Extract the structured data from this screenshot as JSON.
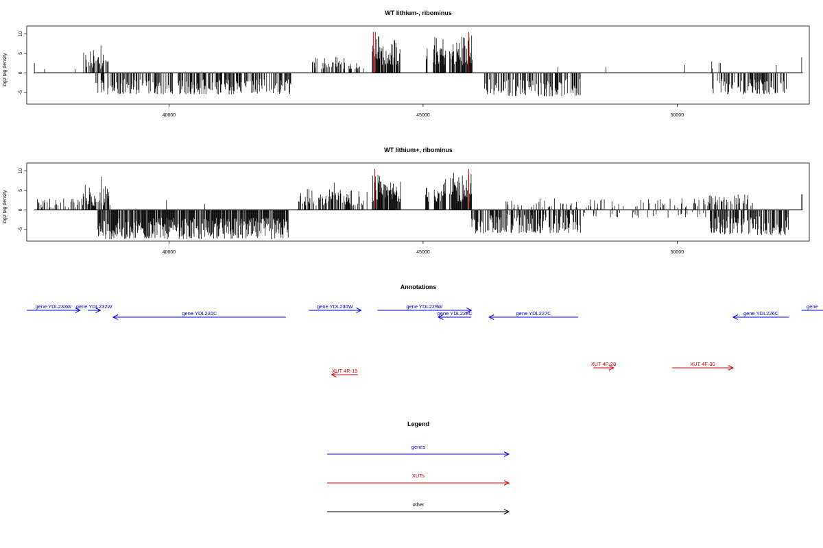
{
  "colors": {
    "gene": "#0000cc",
    "xut": "#cc0000",
    "other": "#000000",
    "highlight": "#cc0000",
    "bar": "#000000"
  },
  "chart_data": [
    {
      "type": "bar",
      "title": "WT lithium-, ribominus",
      "xlabel": "",
      "ylabel": "log2 tag density",
      "xlim": [
        37200,
        52600
      ],
      "ylim": [
        -8,
        12
      ],
      "xticks": [
        40000,
        45000,
        50000
      ],
      "xtick_labels": [
        "40000",
        "45000",
        "50000"
      ],
      "yticks": [
        -5,
        0,
        5,
        10
      ],
      "ytick_labels": [
        "-5",
        "0",
        "5",
        "10"
      ],
      "grid": false,
      "highlight_positions": [
        44020,
        44060,
        45900
      ],
      "segments": [
        {
          "start": 37350,
          "end": 37360,
          "min": 2.5,
          "max": 2.5,
          "density": 1
        },
        {
          "start": 37550,
          "end": 37560,
          "min": 1,
          "max": 1,
          "density": 1
        },
        {
          "start": 38150,
          "end": 38160,
          "min": 1,
          "max": 1,
          "density": 1
        },
        {
          "start": 38320,
          "end": 38830,
          "min": 1,
          "max": 6,
          "density": 0.6
        },
        {
          "start": 38660,
          "end": 38670,
          "min": 7,
          "max": 7,
          "density": 1
        },
        {
          "start": 38550,
          "end": 42400,
          "min": -5.5,
          "max": -1.5,
          "density": 0.55
        },
        {
          "start": 42820,
          "end": 43000,
          "min": 1,
          "max": 4,
          "density": 0.5
        },
        {
          "start": 43000,
          "end": 43500,
          "min": 1,
          "max": 4.5,
          "density": 0.35
        },
        {
          "start": 43520,
          "end": 43830,
          "min": 1,
          "max": 3,
          "density": 0.35
        },
        {
          "start": 44000,
          "end": 44150,
          "min": 3,
          "max": 10,
          "density": 0.8
        },
        {
          "start": 44150,
          "end": 44560,
          "min": 2,
          "max": 8.5,
          "density": 0.85
        },
        {
          "start": 45050,
          "end": 45100,
          "min": 2,
          "max": 6.5,
          "density": 0.8
        },
        {
          "start": 45200,
          "end": 45450,
          "min": 2,
          "max": 9.5,
          "density": 0.85
        },
        {
          "start": 45520,
          "end": 45970,
          "min": 2,
          "max": 10,
          "density": 0.85
        },
        {
          "start": 46200,
          "end": 48100,
          "min": -6,
          "max": -1.5,
          "density": 0.5
        },
        {
          "start": 47650,
          "end": 47660,
          "min": 1.5,
          "max": 1.5,
          "density": 1
        },
        {
          "start": 48600,
          "end": 48610,
          "min": 1.5,
          "max": 1.5,
          "density": 1
        },
        {
          "start": 50150,
          "end": 50160,
          "min": 2,
          "max": 2,
          "density": 1
        },
        {
          "start": 50660,
          "end": 50920,
          "min": 1,
          "max": 3.5,
          "density": 0.15
        },
        {
          "start": 50660,
          "end": 52200,
          "min": -5.5,
          "max": -1.5,
          "density": 0.45
        },
        {
          "start": 51950,
          "end": 51960,
          "min": 2,
          "max": 2,
          "density": 1
        },
        {
          "start": 52450,
          "end": 52460,
          "min": 4,
          "max": 4,
          "density": 1
        }
      ]
    },
    {
      "type": "bar",
      "title": "WT lithium+, ribominus",
      "xlabel": "",
      "ylabel": "log2 tag density",
      "xlim": [
        37200,
        52600
      ],
      "ylim": [
        -8,
        12
      ],
      "xticks": [
        40000,
        45000,
        50000
      ],
      "xtick_labels": [
        "40000",
        "45000",
        "50000"
      ],
      "yticks": [
        -5,
        0,
        5,
        10
      ],
      "ytick_labels": [
        "-5",
        "0",
        "5",
        "10"
      ],
      "grid": false,
      "highlight_positions": [
        44050,
        45900
      ],
      "segments": [
        {
          "start": 37350,
          "end": 38300,
          "min": 0.5,
          "max": 3,
          "density": 0.3
        },
        {
          "start": 38300,
          "end": 38850,
          "min": 1,
          "max": 6.5,
          "density": 0.7
        },
        {
          "start": 38670,
          "end": 38680,
          "min": 8.5,
          "max": 8.5,
          "density": 1
        },
        {
          "start": 38600,
          "end": 42350,
          "min": -7.5,
          "max": -2,
          "density": 0.85
        },
        {
          "start": 39950,
          "end": 39960,
          "min": 2.5,
          "max": 2.5,
          "density": 1
        },
        {
          "start": 40700,
          "end": 40710,
          "min": 1.5,
          "max": 1.5,
          "density": 1
        },
        {
          "start": 42550,
          "end": 43900,
          "min": 1,
          "max": 5.5,
          "density": 0.6
        },
        {
          "start": 43250,
          "end": 43260,
          "min": 7,
          "max": 7,
          "density": 1
        },
        {
          "start": 44000,
          "end": 44150,
          "min": 2,
          "max": 9,
          "density": 0.85
        },
        {
          "start": 44150,
          "end": 44560,
          "min": 2,
          "max": 7.5,
          "density": 0.85
        },
        {
          "start": 45050,
          "end": 45120,
          "min": 2,
          "max": 6,
          "density": 0.8
        },
        {
          "start": 45220,
          "end": 45450,
          "min": 2,
          "max": 8,
          "density": 0.85
        },
        {
          "start": 45520,
          "end": 45970,
          "min": 2,
          "max": 9.5,
          "density": 0.85
        },
        {
          "start": 45950,
          "end": 48100,
          "min": -6,
          "max": -1,
          "density": 0.6
        },
        {
          "start": 46500,
          "end": 50600,
          "min": 0.5,
          "max": 3,
          "density": 0.18
        },
        {
          "start": 48100,
          "end": 50600,
          "min": -2,
          "max": -0.5,
          "density": 0.1
        },
        {
          "start": 50650,
          "end": 52200,
          "min": -6.5,
          "max": -1.5,
          "density": 0.6
        },
        {
          "start": 50500,
          "end": 51500,
          "min": 1,
          "max": 4,
          "density": 0.3
        },
        {
          "start": 52450,
          "end": 52470,
          "min": 4,
          "max": 4,
          "density": 1
        }
      ]
    }
  ],
  "annotations": {
    "title": "Annotations",
    "genes": [
      {
        "label": "gene YDL233W",
        "start": 37200,
        "end": 38250,
        "strand": "+",
        "row": 0
      },
      {
        "label": "gene YDL232W",
        "start": 38400,
        "end": 38650,
        "strand": "+",
        "row": 0
      },
      {
        "label": "gene YDL231C",
        "start": 38900,
        "end": 42300,
        "strand": "-",
        "row": 1
      },
      {
        "label": "gene YDL230W",
        "start": 42750,
        "end": 43780,
        "strand": "+",
        "row": 0
      },
      {
        "label": "gene YDL229W",
        "start": 44100,
        "end": 45950,
        "strand": "+",
        "row": 0
      },
      {
        "label": "gene YDL228C",
        "start": 45300,
        "end": 45950,
        "strand": "-",
        "row": 1
      },
      {
        "label": "gene YDL227C",
        "start": 46300,
        "end": 48050,
        "strand": "-",
        "row": 1
      },
      {
        "label": "gene YDL226C",
        "start": 51100,
        "end": 52200,
        "strand": "-",
        "row": 1
      },
      {
        "label": "gene",
        "start": 52450,
        "end": 53500,
        "strand": "+",
        "row": 0
      }
    ],
    "xuts": [
      {
        "label": "XUT 4R-15",
        "start": 43200,
        "end": 43720,
        "strand": "-",
        "row": 3
      },
      {
        "label": "XUT 4F-28",
        "start": 48350,
        "end": 48750,
        "strand": "+",
        "row": 2
      },
      {
        "label": "XUT 4F-30",
        "start": 49900,
        "end": 51100,
        "strand": "+",
        "row": 2
      }
    ]
  },
  "legend": {
    "title": "Legend",
    "items": [
      {
        "label": "genes",
        "kind": "gene"
      },
      {
        "label": "XUTs",
        "kind": "xut"
      },
      {
        "label": "other",
        "kind": "other"
      }
    ]
  }
}
